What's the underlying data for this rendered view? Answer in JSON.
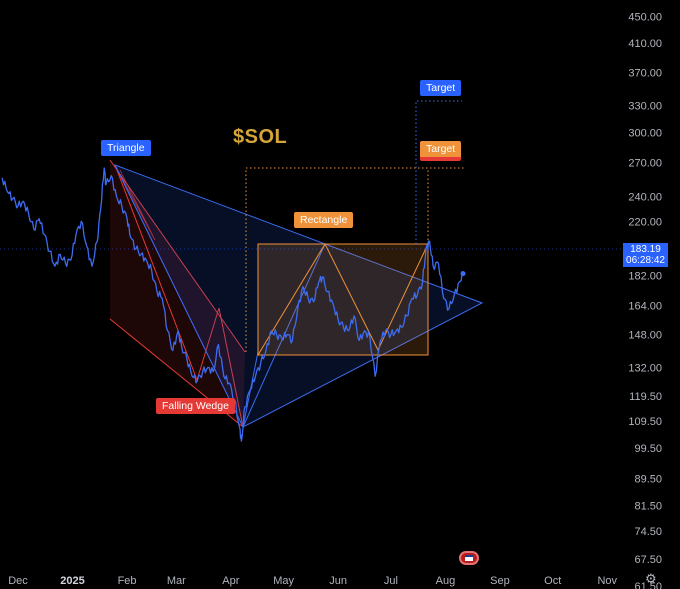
{
  "chart_data": {
    "type": "line",
    "title": "$SOL",
    "y_scale": "log",
    "ylim": [
      55,
      460
    ],
    "x_range": [
      "2024-11-22",
      "2025-11-20"
    ],
    "y_ticks": [
      450.0,
      410.0,
      370.0,
      330.0,
      300.0,
      270.0,
      240.0,
      220.0,
      200.0,
      182.0,
      164.0,
      148.0,
      132.0,
      119.5,
      109.5,
      99.5,
      89.5,
      81.5,
      74.5,
      67.5,
      61.5
    ],
    "y_tick_labels": [
      "450.00",
      "410.00",
      "370.00",
      "330.00",
      "300.00",
      "270.00",
      "240.00",
      "220.00",
      "200.00",
      "182.00",
      "164.00",
      "148.00",
      "132.00",
      "119.50",
      "109.50",
      "99.50",
      "89.50",
      "81.50",
      "74.50",
      "67.50",
      "61.50"
    ],
    "x_ticks": [
      "2024-12-01",
      "2025-01-01",
      "2025-02-01",
      "2025-03-01",
      "2025-04-01",
      "2025-05-01",
      "2025-06-01",
      "2025-07-01",
      "2025-08-01",
      "2025-09-01",
      "2025-10-01",
      "2025-11-01"
    ],
    "x_tick_labels": [
      "Dec",
      "2025",
      "Feb",
      "Mar",
      "Apr",
      "May",
      "Jun",
      "Jul",
      "Aug",
      "Sep",
      "Oct",
      "Nov"
    ],
    "grid": false,
    "current_price": "183.19",
    "countdown": "06:28:42",
    "series": [
      {
        "color": "#3d6cf2",
        "points": [
          [
            "2024-11-22",
            256
          ],
          [
            "2024-11-25",
            244
          ],
          [
            "2024-11-28",
            238
          ],
          [
            "2024-12-01",
            232
          ],
          [
            "2024-12-04",
            236
          ],
          [
            "2024-12-07",
            226
          ],
          [
            "2024-12-10",
            214
          ],
          [
            "2024-12-13",
            222
          ],
          [
            "2024-12-16",
            210
          ],
          [
            "2024-12-19",
            198
          ],
          [
            "2024-12-22",
            188
          ],
          [
            "2024-12-25",
            196
          ],
          [
            "2024-12-28",
            190
          ],
          [
            "2024-12-31",
            192
          ],
          [
            "2025-01-03",
            210
          ],
          [
            "2025-01-06",
            220
          ],
          [
            "2025-01-09",
            202
          ],
          [
            "2025-01-12",
            188
          ],
          [
            "2025-01-15",
            205
          ],
          [
            "2025-01-17",
            230
          ],
          [
            "2025-01-19",
            265
          ],
          [
            "2025-01-20",
            250
          ],
          [
            "2025-01-23",
            258
          ],
          [
            "2025-01-26",
            240
          ],
          [
            "2025-01-29",
            232
          ],
          [
            "2025-02-01",
            222
          ],
          [
            "2025-02-03",
            208
          ],
          [
            "2025-02-06",
            200
          ],
          [
            "2025-02-09",
            196
          ],
          [
            "2025-02-12",
            192
          ],
          [
            "2025-02-15",
            185
          ],
          [
            "2025-02-18",
            172
          ],
          [
            "2025-02-21",
            168
          ],
          [
            "2025-02-24",
            150
          ],
          [
            "2025-02-27",
            140
          ],
          [
            "2025-03-02",
            150
          ],
          [
            "2025-03-04",
            142
          ],
          [
            "2025-03-07",
            136
          ],
          [
            "2025-03-10",
            128
          ],
          [
            "2025-03-13",
            126
          ],
          [
            "2025-03-16",
            130
          ],
          [
            "2025-03-19",
            132
          ],
          [
            "2025-03-22",
            130
          ],
          [
            "2025-03-25",
            143
          ],
          [
            "2025-03-28",
            128
          ],
          [
            "2025-03-31",
            125
          ],
          [
            "2025-04-03",
            118
          ],
          [
            "2025-04-06",
            107
          ],
          [
            "2025-04-07",
            102
          ],
          [
            "2025-04-09",
            115
          ],
          [
            "2025-04-12",
            122
          ],
          [
            "2025-04-15",
            128
          ],
          [
            "2025-04-18",
            134
          ],
          [
            "2025-04-21",
            140
          ],
          [
            "2025-04-24",
            150
          ],
          [
            "2025-04-27",
            148
          ],
          [
            "2025-04-30",
            146
          ],
          [
            "2025-05-03",
            148
          ],
          [
            "2025-05-06",
            145
          ],
          [
            "2025-05-09",
            162
          ],
          [
            "2025-05-12",
            175
          ],
          [
            "2025-05-15",
            168
          ],
          [
            "2025-05-18",
            166
          ],
          [
            "2025-05-21",
            178
          ],
          [
            "2025-05-23",
            181
          ],
          [
            "2025-05-26",
            172
          ],
          [
            "2025-05-29",
            165
          ],
          [
            "2025-06-01",
            156
          ],
          [
            "2025-06-04",
            152
          ],
          [
            "2025-06-07",
            150
          ],
          [
            "2025-06-10",
            158
          ],
          [
            "2025-06-13",
            145
          ],
          [
            "2025-06-16",
            150
          ],
          [
            "2025-06-19",
            147
          ],
          [
            "2025-06-22",
            128
          ],
          [
            "2025-06-25",
            145
          ],
          [
            "2025-06-28",
            150
          ],
          [
            "2025-07-01",
            148
          ],
          [
            "2025-07-04",
            150
          ],
          [
            "2025-07-07",
            152
          ],
          [
            "2025-07-10",
            158
          ],
          [
            "2025-07-13",
            168
          ],
          [
            "2025-07-16",
            170
          ],
          [
            "2025-07-19",
            178
          ],
          [
            "2025-07-21",
            200
          ],
          [
            "2025-07-23",
            205
          ],
          [
            "2025-07-25",
            188
          ],
          [
            "2025-07-28",
            190
          ],
          [
            "2025-07-31",
            168
          ],
          [
            "2025-08-03",
            162
          ],
          [
            "2025-08-06",
            170
          ],
          [
            "2025-08-09",
            178
          ],
          [
            "2025-08-11",
            183.19
          ]
        ]
      }
    ],
    "annotations": [
      {
        "text": "Triangle",
        "color": "#2962ff"
      },
      {
        "text": "Falling Wedge",
        "color": "#e53935"
      },
      {
        "text": "Rectangle",
        "color": "#f0923a"
      },
      {
        "text": "Target",
        "color": "#2962ff"
      },
      {
        "text": "Target",
        "color": "#f0923a"
      }
    ]
  }
}
